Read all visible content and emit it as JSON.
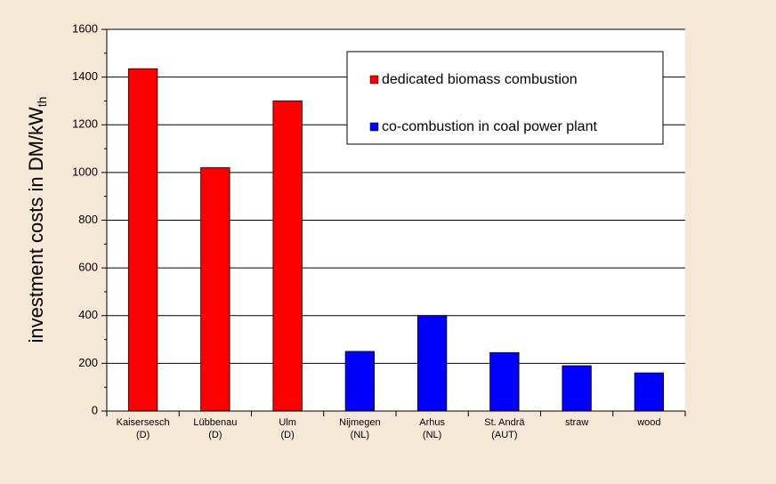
{
  "chart_data": {
    "type": "bar",
    "y_label": {
      "text": "investment costs in DM/kW",
      "subscript": "th"
    },
    "categories": [
      [
        "Kaisersesch",
        "(D)"
      ],
      [
        "Lübbenau",
        "(D)"
      ],
      [
        "Ulm",
        "(D)"
      ],
      [
        "Nijmegen",
        "(NL)"
      ],
      [
        "Arhus",
        "(NL)"
      ],
      [
        "St. Andrä",
        "(AUT)"
      ],
      [
        "straw"
      ],
      [
        "wood"
      ]
    ],
    "series": [
      {
        "name": "dedicated biomass combustion",
        "color": "#ff0000",
        "values": [
          1435,
          1020,
          1300,
          null,
          null,
          null,
          null,
          null
        ]
      },
      {
        "name": "co-combustion in coal power plant",
        "color": "#0000ff",
        "values": [
          null,
          null,
          null,
          250,
          400,
          245,
          190,
          160
        ]
      }
    ],
    "ylim": [
      0,
      1600
    ],
    "yticks": [
      0,
      200,
      400,
      600,
      800,
      1000,
      1200,
      1400,
      1600
    ],
    "grid": true
  }
}
